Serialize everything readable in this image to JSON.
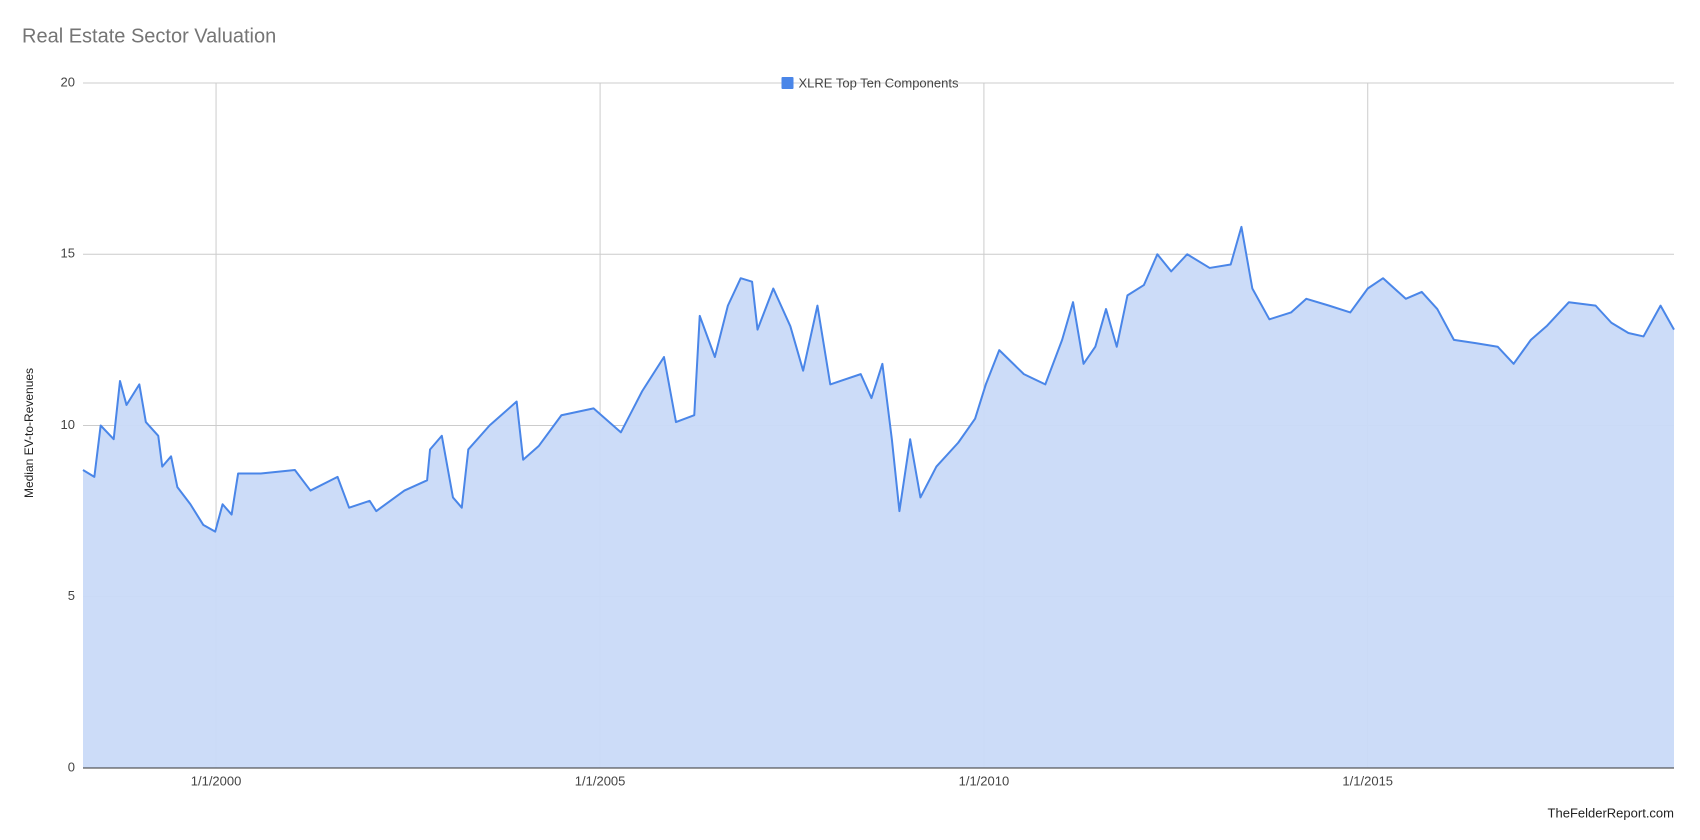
{
  "chart_data": {
    "type": "area",
    "title": "Real Estate Sector Valuation",
    "y_label": "Median EV-to-Revenues",
    "source": "TheFelderReport.com",
    "legend": "top",
    "grid": true,
    "x": [
      "4/8/1998",
      "6/1/1998",
      "7/1/1998",
      "9/1/1998",
      "10/1/1998",
      "11/1/1998",
      "1/1/1999",
      "2/1/1999",
      "4/1/1999",
      "4/20/1999",
      "6/1/1999",
      "7/1/1999",
      "9/1/1999",
      "11/1/1999",
      "12/28/1999",
      "2/1/2000",
      "3/15/2000",
      "4/15/2000",
      "8/1/2000",
      "1/10/2001",
      "3/25/2001",
      "8/1/2001",
      "9/25/2001",
      "1/1/2002",
      "2/1/2002",
      "6/15/2002",
      "10/1/2002",
      "10/15/2002",
      "12/10/2002",
      "2/1/2003",
      "3/15/2003",
      "4/15/2003",
      "7/25/2003",
      "12/1/2003",
      "1/1/2004",
      "3/15/2004",
      "7/1/2004",
      "12/1/2004",
      "4/10/2005",
      "7/20/2005",
      "11/1/2005",
      "12/28/2005",
      "3/25/2006",
      "4/20/2006",
      "7/1/2006",
      "9/1/2006",
      "11/1/2006",
      "12/25/2006",
      "1/20/2007",
      "4/5/2007",
      "6/25/2007",
      "8/25/2007",
      "11/1/2007",
      "1/1/2008",
      "5/25/2008",
      "7/15/2008",
      "9/5/2008",
      "10/20/2008",
      "11/25/2008",
      "1/15/2009",
      "3/5/2009",
      "5/20/2009",
      "9/1/2009",
      "11/20/2009",
      "1/10/2010",
      "3/15/2010",
      "7/10/2010",
      "10/20/2010",
      "1/8/2011",
      "3/1/2011",
      "4/20/2011",
      "6/15/2011",
      "8/5/2011",
      "9/25/2011",
      "11/15/2011",
      "2/1/2012",
      "4/5/2012",
      "6/10/2012",
      "8/25/2012",
      "12/10/2012",
      "3/20/2013",
      "5/10/2013",
      "7/1/2013",
      "9/20/2013",
      "1/1/2014",
      "3/15/2014",
      "7/1/2014",
      "10/10/2014",
      "1/1/2015",
      "3/15/2015",
      "7/1/2015",
      "9/15/2015",
      "11/28/2015",
      "2/15/2016",
      "6/1/2016",
      "9/10/2016",
      "11/25/2016",
      "2/15/2017",
      "5/1/2017",
      "8/15/2017",
      "12/20/2017",
      "3/5/2018",
      "5/25/2018",
      "8/5/2018",
      "10/25/2018",
      "12/28/2018"
    ],
    "series": [
      {
        "name": "XLRE Top Ten Components",
        "color": "#4a86e8",
        "fill": "#c9daf8",
        "values": [
          8.7,
          8.5,
          10.0,
          9.6,
          11.3,
          10.6,
          11.2,
          10.1,
          9.7,
          8.8,
          9.1,
          8.2,
          7.7,
          7.1,
          6.9,
          7.7,
          7.4,
          8.6,
          8.6,
          8.7,
          8.1,
          8.5,
          7.6,
          7.8,
          7.5,
          8.1,
          8.4,
          9.3,
          9.7,
          7.9,
          7.6,
          9.3,
          10.0,
          10.7,
          9.0,
          9.4,
          10.3,
          10.5,
          9.8,
          11.0,
          12.0,
          10.1,
          10.3,
          13.2,
          12.0,
          13.5,
          14.3,
          14.2,
          12.8,
          14.0,
          12.9,
          11.6,
          13.5,
          11.2,
          11.5,
          10.8,
          11.8,
          9.6,
          7.5,
          9.6,
          7.9,
          8.8,
          9.5,
          10.2,
          11.2,
          12.2,
          11.5,
          11.2,
          12.5,
          13.6,
          11.8,
          12.3,
          13.4,
          12.3,
          13.8,
          14.1,
          15.0,
          14.5,
          15.0,
          14.6,
          14.7,
          15.8,
          14.0,
          13.1,
          13.3,
          13.7,
          13.5,
          13.3,
          14.0,
          14.3,
          13.7,
          13.9,
          13.4,
          12.5,
          12.4,
          12.3,
          11.8,
          12.5,
          12.9,
          13.6,
          13.5,
          13.0,
          12.7,
          12.6,
          13.5,
          12.8
        ]
      }
    ],
    "xlim": [
      "4/8/1998",
      "12/28/2018"
    ],
    "xticks": [
      "1/1/2000",
      "1/1/2005",
      "1/1/2010",
      "1/1/2015"
    ],
    "ylim": [
      0,
      20
    ],
    "yticks": [
      0,
      5,
      10,
      15,
      20
    ]
  }
}
